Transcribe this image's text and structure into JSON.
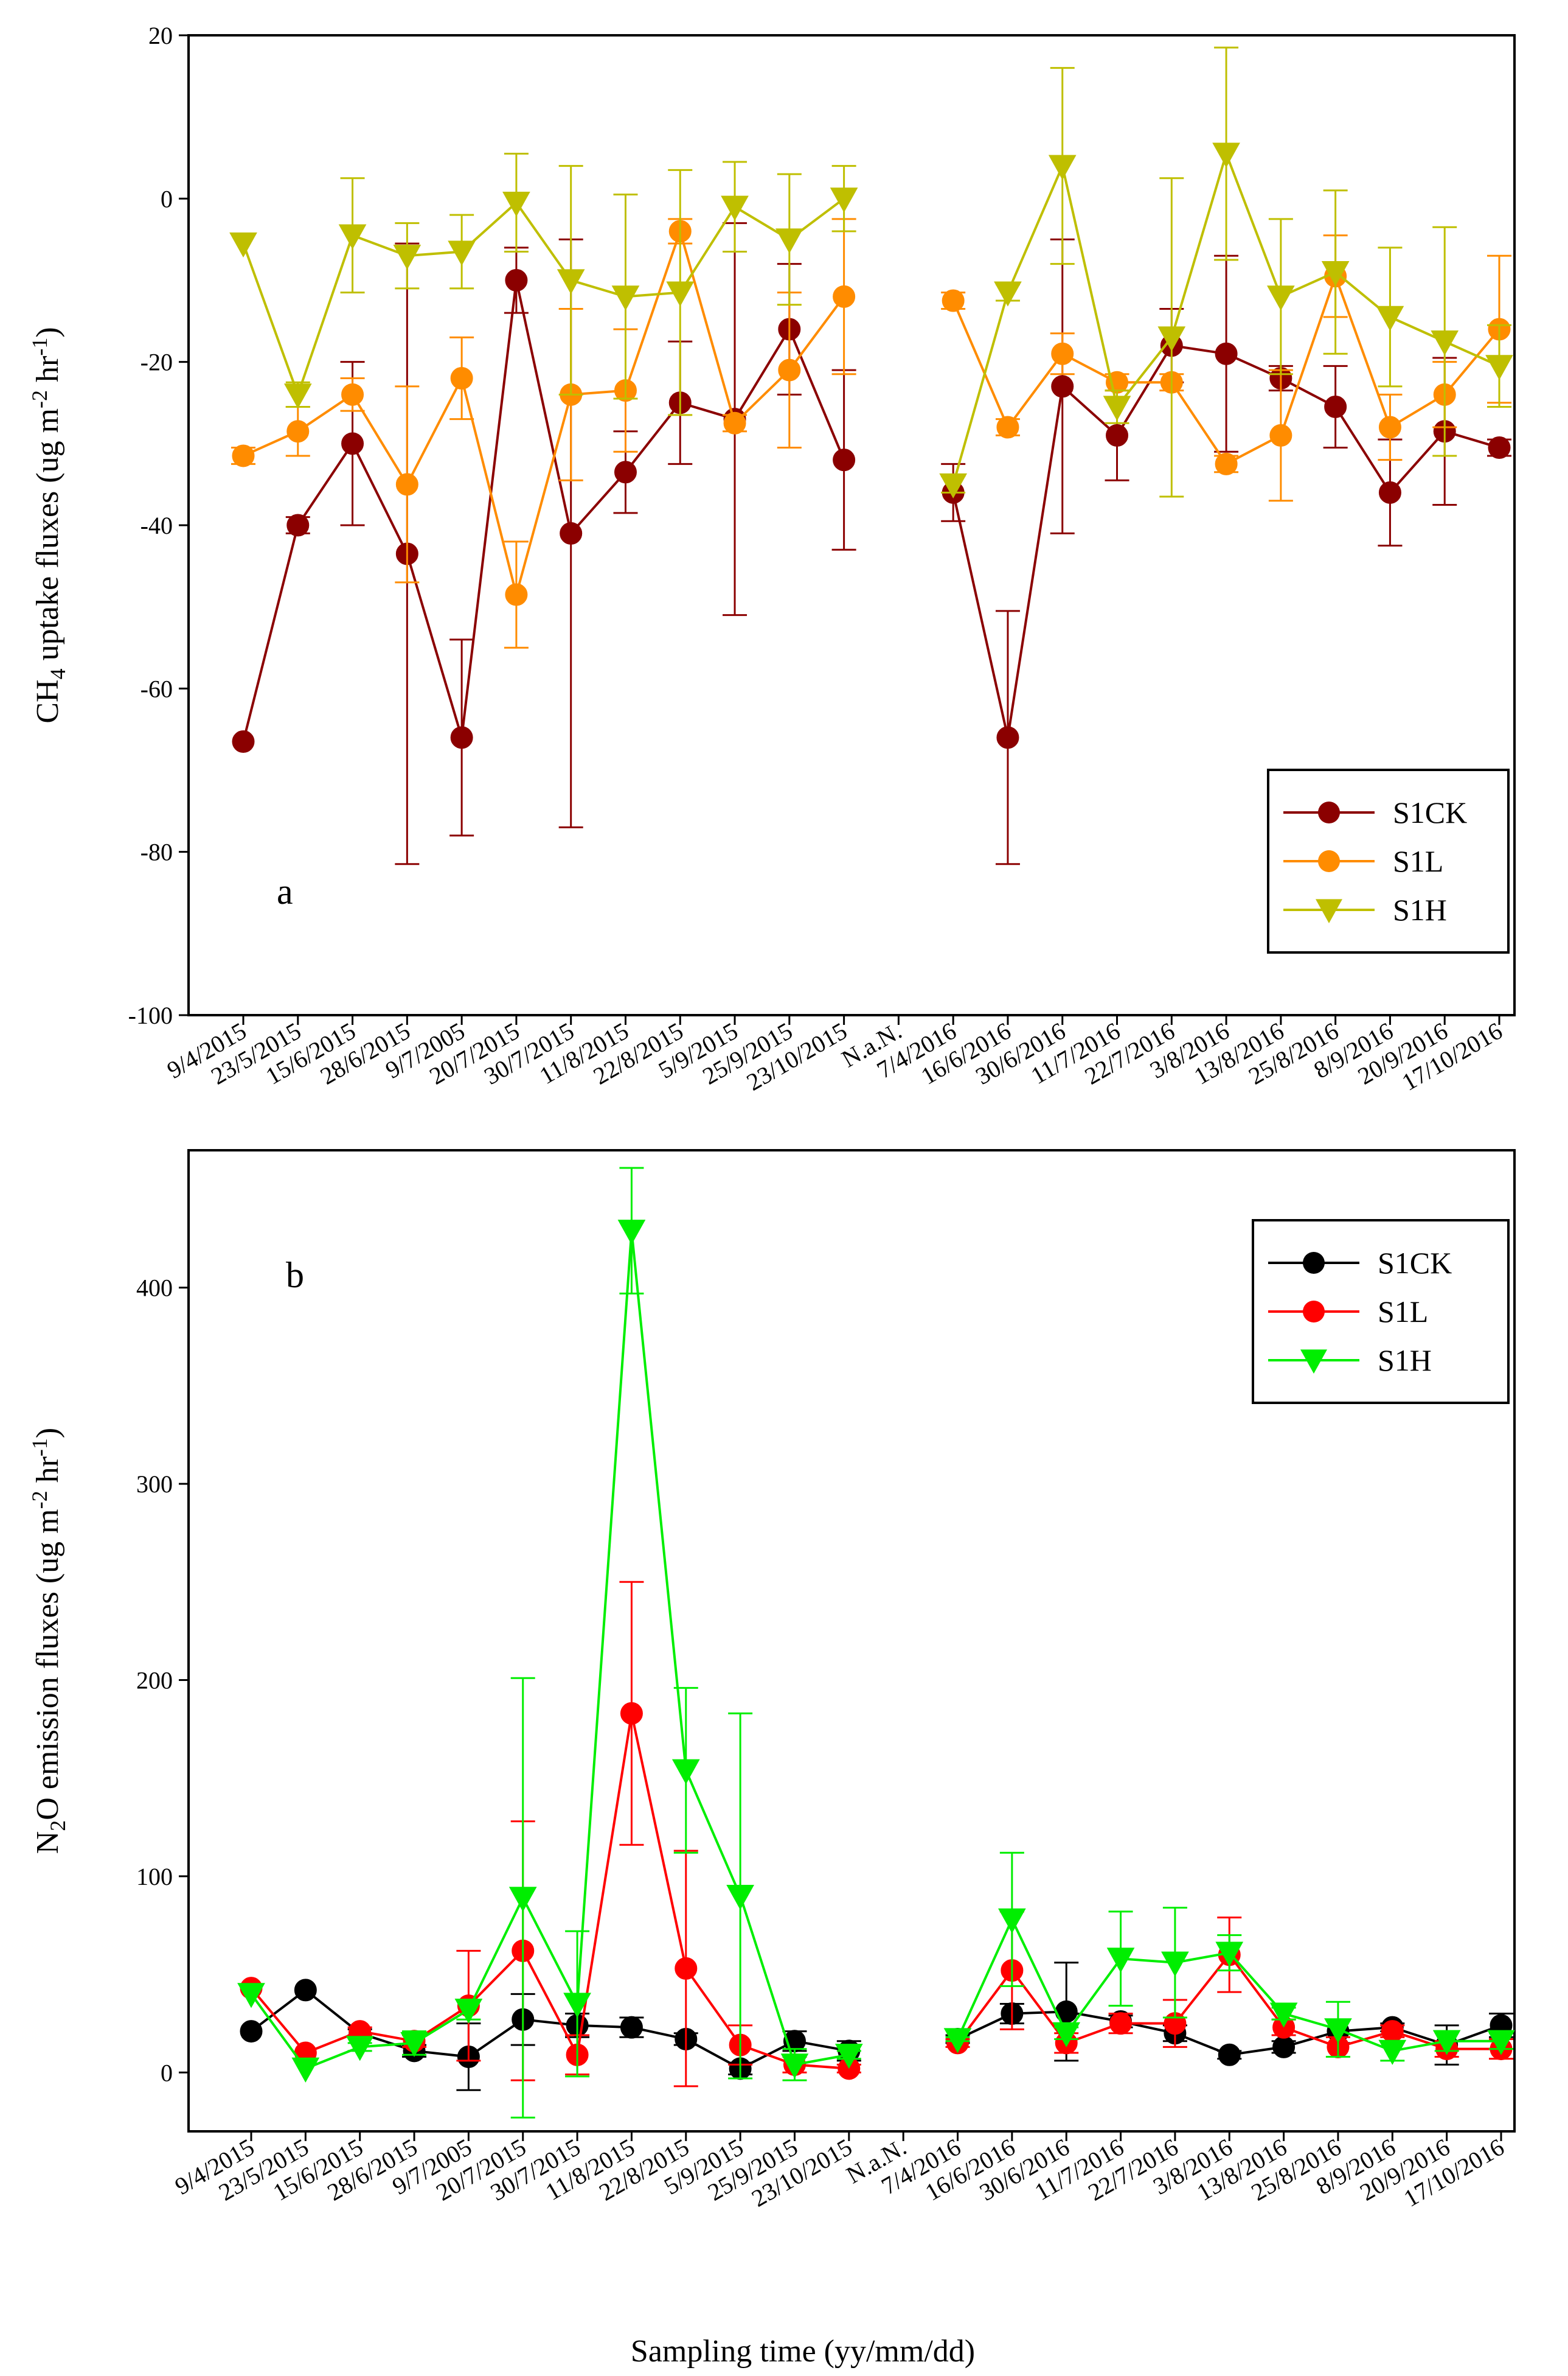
{
  "figure": {
    "xlabel": "Sampling time (yy/mm/dd)"
  },
  "chart_data": [
    {
      "type": "line",
      "panel_label": "a",
      "ylabel_main": "CH",
      "ylabel_sub": "4",
      "ylabel_tail": " uptake fluxes (ug m",
      "ylabel_sup1": "-2",
      "ylabel_mid": " hr",
      "ylabel_sup2": "-1",
      "ylabel_close": ")",
      "ylim": [
        -100,
        20
      ],
      "yticks": [
        -100,
        -80,
        -60,
        -40,
        -20,
        0,
        20
      ],
      "ytick_labels": [
        "-100",
        "-80",
        "-60",
        "-40",
        "-20",
        "0",
        "20"
      ],
      "categories": [
        "9/4/2015",
        "23/5/2015",
        "15/6/2015",
        "28/6/2015",
        "9/7/2005",
        "20/7/2015",
        "30/7/2015",
        "11/8/2015",
        "22/8/2015",
        "5/9/2015",
        "25/9/2015",
        "23/10/2015",
        "N.a.N.",
        "7/4/2016",
        "16/6/2016",
        "30/6/2016",
        "11/7/2016",
        "22/7/2016",
        "3/8/2016",
        "13/8/2016",
        "25/8/2016",
        "8/9/2016",
        "20/9/2016",
        "17/10/2016"
      ],
      "legend_position": "bottom-right",
      "series": [
        {
          "name": "S1CK",
          "marker": "circle",
          "color": "#8B0000",
          "values": [
            -66.5,
            -40,
            -30,
            -43.5,
            -66,
            -10,
            -41,
            -33.5,
            -25,
            -27,
            -16,
            -32,
            null,
            -36,
            -66,
            -23,
            -29,
            -18,
            -19,
            -22,
            -25.5,
            -36,
            -28.5,
            -30.5
          ],
          "errors": [
            0,
            1,
            10,
            38,
            12,
            4,
            36,
            5,
            7.5,
            24,
            8,
            11,
            null,
            3.5,
            15.5,
            18,
            5.5,
            4.5,
            12,
            1.5,
            5,
            6.5,
            9,
            1
          ]
        },
        {
          "name": "S1L",
          "marker": "circle",
          "color": "#FF8C00",
          "values": [
            -31.5,
            -28.5,
            -24,
            -35,
            -22,
            -48.5,
            -24,
            -23.5,
            -4,
            -27.5,
            -21,
            -12,
            null,
            -12.5,
            -28,
            -19,
            -22.5,
            -22.5,
            -32.5,
            -29,
            -9.5,
            -28,
            -24,
            -16
          ],
          "errors": [
            1,
            3,
            2,
            12,
            5,
            6.5,
            10.5,
            7.5,
            1.5,
            1,
            9.5,
            9.5,
            null,
            1,
            1,
            2.5,
            1,
            1,
            1,
            8,
            5,
            4,
            4,
            9
          ]
        },
        {
          "name": "S1H",
          "marker": "triangle-down",
          "color": "#BFBF00",
          "values": [
            -5.5,
            -24,
            -4.5,
            -7,
            -6.5,
            -0.5,
            -10,
            -12,
            -11.5,
            -1,
            -5,
            0,
            null,
            -35,
            -11.5,
            4,
            -25.5,
            -17,
            5.5,
            -12,
            -9,
            -14.5,
            -17.5,
            -20.5
          ],
          "errors": [
            0,
            1.5,
            7,
            4,
            4.5,
            6,
            14,
            12.5,
            15,
            5.5,
            8,
            4,
            null,
            1,
            1,
            12,
            2,
            19.5,
            13,
            9.5,
            10,
            8.5,
            14,
            5
          ]
        }
      ]
    },
    {
      "type": "line",
      "panel_label": "b",
      "ylabel_main": "N",
      "ylabel_sub": "2",
      "ylabel_tail": "O emission fluxes (ug m",
      "ylabel_sup1": "-2",
      "ylabel_mid": " hr",
      "ylabel_sup2": "-1",
      "ylabel_close": ")",
      "ylim": [
        -30,
        470
      ],
      "yticks": [
        0,
        100,
        200,
        300,
        400
      ],
      "ytick_labels": [
        "0",
        "100",
        "200",
        "300",
        "400"
      ],
      "categories": [
        "9/4/2015",
        "23/5/2015",
        "15/6/2015",
        "28/6/2015",
        "9/7/2005",
        "20/7/2015",
        "30/7/2015",
        "11/8/2015",
        "22/8/2015",
        "5/9/2015",
        "25/9/2015",
        "23/10/2015",
        "N.a.N.",
        "7/4/2016",
        "16/6/2016",
        "30/6/2016",
        "11/7/2016",
        "22/7/2016",
        "3/8/2016",
        "13/8/2016",
        "25/8/2016",
        "8/9/2016",
        "20/9/2016",
        "17/10/2016"
      ],
      "legend_position": "top-right",
      "series": [
        {
          "name": "S1CK",
          "marker": "circle",
          "color": "#000000",
          "values": [
            21,
            42,
            20,
            11,
            8,
            27,
            24,
            23,
            17,
            2,
            16,
            11,
            null,
            17,
            30,
            31,
            26,
            20,
            9,
            13,
            21,
            23,
            14,
            24
          ],
          "errors": [
            0,
            0,
            2,
            3,
            17,
            13,
            6,
            5,
            3,
            3,
            5,
            5,
            null,
            2,
            5,
            25,
            3,
            4,
            2,
            3,
            6,
            2,
            10,
            6
          ]
        },
        {
          "name": "S1L",
          "marker": "circle",
          "color": "#FF0000",
          "values": [
            43,
            10,
            21,
            16,
            34,
            62,
            9,
            183,
            53,
            14,
            4,
            2,
            null,
            15,
            52,
            15,
            25,
            25,
            60,
            23,
            13,
            21,
            12,
            12
          ],
          "errors": [
            0,
            0,
            2,
            3,
            28,
            66,
            10,
            67,
            60,
            10,
            4,
            2,
            null,
            2,
            30,
            5,
            5,
            12,
            19,
            4,
            5,
            3,
            4,
            5
          ]
        },
        {
          "name": "S1H",
          "marker": "triangle-down",
          "color": "#00EE00",
          "values": [
            40,
            2,
            13,
            15,
            32,
            89,
            35,
            429,
            154,
            90,
            4,
            9,
            null,
            17,
            78,
            20,
            58,
            56,
            61,
            30,
            22,
            11,
            16,
            16
          ],
          "errors": [
            0,
            0,
            2,
            6,
            5,
            112,
            37,
            32,
            42,
            93,
            8,
            2,
            null,
            1,
            34,
            3,
            24,
            28,
            9,
            3,
            14,
            5,
            5,
            4
          ]
        }
      ]
    }
  ]
}
